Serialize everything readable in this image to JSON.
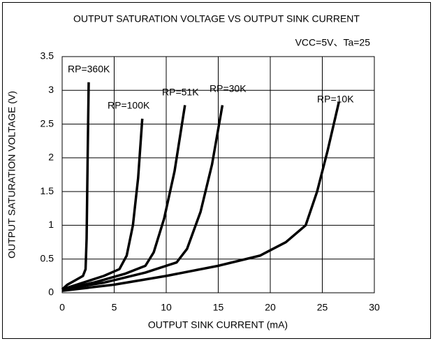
{
  "chart_data": {
    "type": "line",
    "title": "OUTPUT SATURATION VOLTAGE VS OUTPUT SINK CURRENT",
    "annotation": "VCC=5V、Ta=25",
    "x_label": "OUTPUT SINK CURRENT (mA)",
    "y_label": "OUTPUT SATURATION VOLTAGE (V)",
    "xlim": [
      0,
      30
    ],
    "ylim": [
      0,
      3.5
    ],
    "xticks": [
      0,
      5,
      10,
      15,
      20,
      25,
      30
    ],
    "yticks": [
      0,
      0.5,
      1,
      1.5,
      2,
      2.5,
      3,
      3.5
    ],
    "grid": true,
    "series": [
      {
        "name": "RP=360K",
        "color": "#000000",
        "x": [
          0,
          0.5,
          1.2,
          2,
          2.25,
          2.35,
          2.45,
          2.55
        ],
        "values": [
          0.05,
          0.12,
          0.18,
          0.25,
          0.35,
          0.8,
          2,
          3.12
        ]
      },
      {
        "name": "RP=100K",
        "color": "#000000",
        "x": [
          0,
          2,
          4,
          5.5,
          6.2,
          6.8,
          7.3,
          7.7
        ],
        "values": [
          0.05,
          0.15,
          0.25,
          0.35,
          0.55,
          1,
          1.7,
          2.58
        ]
      },
      {
        "name": "RP=51K",
        "color": "#000000",
        "x": [
          0,
          3,
          6,
          8,
          8.8,
          9.8,
          10.8,
          11.8
        ],
        "values": [
          0.05,
          0.15,
          0.28,
          0.4,
          0.6,
          1.1,
          1.8,
          2.78
        ]
      },
      {
        "name": "RP=30K",
        "color": "#000000",
        "x": [
          0,
          4,
          8,
          11,
          12,
          13.3,
          14.4,
          15.4
        ],
        "values": [
          0.05,
          0.15,
          0.3,
          0.45,
          0.65,
          1.2,
          1.9,
          2.78
        ]
      },
      {
        "name": "RP=10K",
        "color": "#000000",
        "x": [
          0,
          5,
          10,
          15,
          19,
          21.5,
          23.4,
          24.5,
          25.5,
          26.6
        ],
        "values": [
          0.03,
          0.12,
          0.25,
          0.4,
          0.55,
          0.75,
          1,
          1.5,
          2.1,
          2.83
        ]
      }
    ]
  }
}
